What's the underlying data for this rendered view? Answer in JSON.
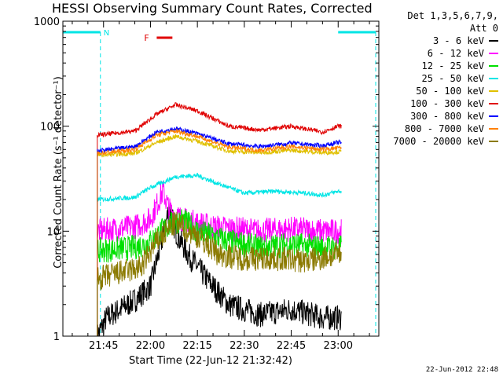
{
  "title": "HESSI Observing Summary Count Rates, Corrected",
  "det_line1": "Det 1,3,5,6,7,9,",
  "det_line2": "Att 0",
  "ylabel": "Corrected Count Rate (s⁻¹ detector⁻¹)",
  "xlabel": "Start Time (22-Jun-12 21:32:42)",
  "stamp": "22-Jun-2012 22:48",
  "flags": {
    "night_label": "N",
    "flare_label": "F"
  },
  "colors": {
    "axis": "#000000",
    "night": "#00e5e5",
    "flare": "#e00000"
  },
  "chart_data": {
    "type": "line",
    "yscale": "log",
    "ylim": [
      1,
      1000
    ],
    "ytick_labels": [
      "1",
      "10",
      "100",
      "1000"
    ],
    "xlim": [
      "21:32",
      "23:13"
    ],
    "xtick_labels": [
      "21:45",
      "22:00",
      "22:15",
      "22:30",
      "22:45",
      "23:00"
    ],
    "grid": false,
    "legend_position": "right",
    "night_intervals": [
      [
        "21:32",
        "21:44"
      ],
      [
        "23:00",
        "23:12"
      ]
    ],
    "flare_interval": [
      "22:02",
      "22:05"
    ],
    "data_start": "21:43",
    "data_end": "23:01",
    "series": [
      {
        "name": "3 - 6 keV",
        "color": "#000000",
        "points": [
          [
            "21:43",
            1
          ],
          [
            "21:46",
            1.5
          ],
          [
            "21:55",
            2.2
          ],
          [
            "22:00",
            3
          ],
          [
            "22:04",
            9
          ],
          [
            "22:06",
            17
          ],
          [
            "22:08",
            10
          ],
          [
            "22:12",
            6
          ],
          [
            "22:18",
            3.5
          ],
          [
            "22:25",
            2
          ],
          [
            "22:35",
            1.6
          ],
          [
            "22:45",
            1.8
          ],
          [
            "22:55",
            1.5
          ],
          [
            "23:00",
            1.5
          ]
        ]
      },
      {
        "name": "6 - 12 keV",
        "color": "#ff00ff",
        "points": [
          [
            "21:43",
            10
          ],
          [
            "21:55",
            11
          ],
          [
            "22:00",
            13
          ],
          [
            "22:04",
            24
          ],
          [
            "22:06",
            16
          ],
          [
            "22:10",
            13
          ],
          [
            "22:20",
            11
          ],
          [
            "22:35",
            10
          ],
          [
            "22:45",
            10.5
          ],
          [
            "22:55",
            10
          ],
          [
            "23:00",
            10
          ]
        ]
      },
      {
        "name": "12 - 25 keV",
        "color": "#00e000",
        "points": [
          [
            "21:43",
            6.5
          ],
          [
            "21:55",
            7
          ],
          [
            "22:00",
            8
          ],
          [
            "22:05",
            11
          ],
          [
            "22:10",
            13
          ],
          [
            "22:15",
            10
          ],
          [
            "22:25",
            8
          ],
          [
            "22:35",
            7
          ],
          [
            "22:45",
            7.5
          ],
          [
            "22:55",
            7
          ],
          [
            "23:00",
            7
          ]
        ]
      },
      {
        "name": "25 - 50 keV",
        "color": "#00e5e5",
        "points": [
          [
            "21:43",
            20
          ],
          [
            "21:55",
            21
          ],
          [
            "22:00",
            26
          ],
          [
            "22:08",
            33
          ],
          [
            "22:15",
            34
          ],
          [
            "22:22",
            28
          ],
          [
            "22:30",
            23
          ],
          [
            "22:40",
            24
          ],
          [
            "22:50",
            23
          ],
          [
            "22:55",
            22
          ],
          [
            "23:00",
            24
          ]
        ]
      },
      {
        "name": "50 - 100 keV",
        "color": "#e0c000",
        "points": [
          [
            "21:43",
            53
          ],
          [
            "21:55",
            55
          ],
          [
            "22:02",
            70
          ],
          [
            "22:08",
            80
          ],
          [
            "22:15",
            72
          ],
          [
            "22:25",
            58
          ],
          [
            "22:35",
            56
          ],
          [
            "22:45",
            59
          ],
          [
            "22:55",
            56
          ],
          [
            "23:00",
            57
          ]
        ]
      },
      {
        "name": "100 - 300 keV",
        "color": "#e00000",
        "points": [
          [
            "21:43",
            82
          ],
          [
            "21:55",
            90
          ],
          [
            "22:02",
            130
          ],
          [
            "22:08",
            160
          ],
          [
            "22:15",
            140
          ],
          [
            "22:25",
            100
          ],
          [
            "22:35",
            92
          ],
          [
            "22:45",
            100
          ],
          [
            "22:55",
            88
          ],
          [
            "23:00",
            100
          ]
        ]
      },
      {
        "name": "300 - 800 keV",
        "color": "#0000ff",
        "points": [
          [
            "21:43",
            58
          ],
          [
            "21:55",
            64
          ],
          [
            "22:02",
            88
          ],
          [
            "22:08",
            95
          ],
          [
            "22:15",
            85
          ],
          [
            "22:25",
            68
          ],
          [
            "22:35",
            64
          ],
          [
            "22:45",
            69
          ],
          [
            "22:55",
            65
          ],
          [
            "23:00",
            70
          ]
        ]
      },
      {
        "name": "800 - 7000 keV",
        "color": "#ff8000",
        "points": [
          [
            "21:43",
            55
          ],
          [
            "21:55",
            60
          ],
          [
            "22:02",
            82
          ],
          [
            "22:08",
            90
          ],
          [
            "22:15",
            80
          ],
          [
            "22:25",
            63
          ],
          [
            "22:35",
            59
          ],
          [
            "22:45",
            64
          ],
          [
            "22:55",
            60
          ],
          [
            "23:00",
            62
          ]
        ]
      },
      {
        "name": "7000 - 20000 keV",
        "color": "#8b7a00",
        "points": [
          [
            "21:43",
            3.5
          ],
          [
            "21:50",
            4
          ],
          [
            "21:57",
            4.5
          ],
          [
            "22:02",
            8
          ],
          [
            "22:08",
            12
          ],
          [
            "22:15",
            9
          ],
          [
            "22:22",
            6
          ],
          [
            "22:30",
            5.5
          ],
          [
            "22:40",
            5.5
          ],
          [
            "22:50",
            5.2
          ],
          [
            "23:00",
            6
          ]
        ]
      }
    ]
  }
}
